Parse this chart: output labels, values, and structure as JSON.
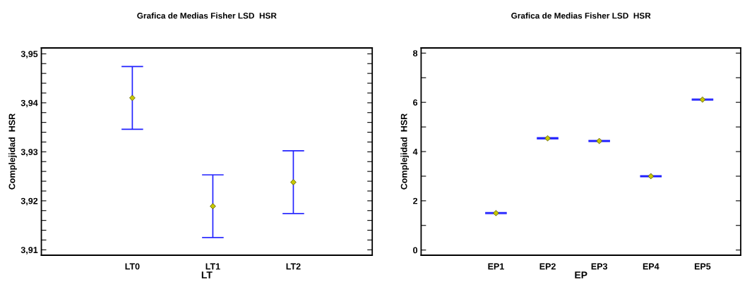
{
  "chart_data": [
    {
      "type": "scatter",
      "title": "Grafica de Medias Fisher LSD  HSR",
      "xlabel": "LT",
      "ylabel": "Complejidad  HSR",
      "categories": [
        "LT0",
        "LT1",
        "LT2"
      ],
      "marker": "diamond",
      "series": [
        {
          "color": "#c8c800",
          "values": [
            3.941,
            3.9189,
            3.9238
          ],
          "errors": [
            0.0064,
            0.0064,
            0.0064
          ]
        }
      ],
      "ylim": [
        3.9089,
        3.9512
      ],
      "yticks": [
        {
          "value": 3.91,
          "label": "3,91"
        },
        {
          "value": 3.912,
          "label": null
        },
        {
          "value": 3.914,
          "label": null
        },
        {
          "value": 3.916,
          "label": null
        },
        {
          "value": 3.918,
          "label": null
        },
        {
          "value": 3.92,
          "label": "3,92"
        },
        {
          "value": 3.922,
          "label": null
        },
        {
          "value": 3.924,
          "label": null
        },
        {
          "value": 3.926,
          "label": null
        },
        {
          "value": 3.928,
          "label": null
        },
        {
          "value": 3.93,
          "label": "3,93"
        },
        {
          "value": 3.932,
          "label": null
        },
        {
          "value": 3.934,
          "label": null
        },
        {
          "value": 3.936,
          "label": null
        },
        {
          "value": 3.938,
          "label": null
        },
        {
          "value": 3.94,
          "label": "3,94"
        },
        {
          "value": 3.942,
          "label": null
        },
        {
          "value": 3.944,
          "label": null
        },
        {
          "value": 3.946,
          "label": null
        },
        {
          "value": 3.948,
          "label": null
        },
        {
          "value": 3.95,
          "label": "3,95"
        }
      ]
    },
    {
      "type": "scatter",
      "title": "Grafica de Medias Fisher LSD  HSR",
      "xlabel": "EP",
      "ylabel": "Complejidad  HSR",
      "categories": [
        "EP1",
        "EP2",
        "EP3",
        "EP4",
        "EP5"
      ],
      "marker": "diamond",
      "series": [
        {
          "color": "#c8c800",
          "values": [
            1.5,
            4.54,
            4.43,
            3.0,
            6.11
          ],
          "errors": [
            0.02,
            0.02,
            0.02,
            0.02,
            0.02
          ]
        }
      ],
      "ylim": [
        -0.21,
        8.21
      ],
      "yticks": [
        0,
        {
          "value": 1,
          "label": null
        },
        2,
        {
          "value": 3,
          "label": null
        },
        4,
        {
          "value": 5,
          "label": null
        },
        6,
        {
          "value": 7,
          "label": null
        },
        8
      ]
    }
  ]
}
